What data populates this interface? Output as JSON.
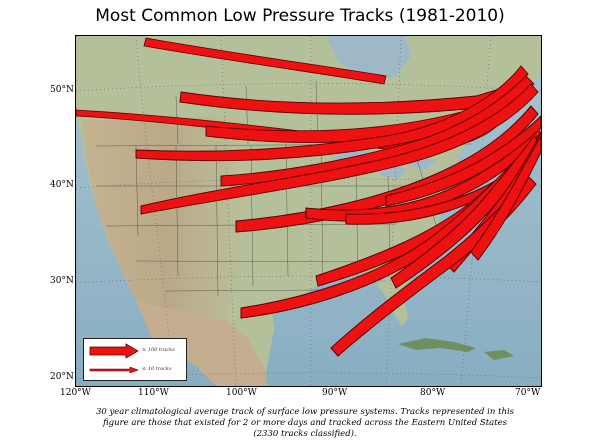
{
  "title": "Most Common Low Pressure Tracks (1981-2010)",
  "latitude_labels": [
    "50°N",
    "40°N",
    "30°N",
    "20°N"
  ],
  "longitude_labels": [
    "120°W",
    "110°W",
    "100°W",
    "90°W",
    "80°W",
    "70°W"
  ],
  "legend": {
    "items": [
      {
        "label": "≥ 100 tracks",
        "style": "thick"
      },
      {
        "label": "≤ 10 tracks",
        "style": "thin"
      }
    ]
  },
  "caption": "30 year climatological average track of surface low pressure systems. Tracks represented in this figure are those that existed for 2 or more days and tracked across the Eastern United States (2330 tracks classified).",
  "colors": {
    "track_fill": "#ee1111",
    "track_stroke": "#5a0000",
    "land": "#b7c29a",
    "mountains": "#c6a98a",
    "water": "#9fb8c6",
    "ocean_deep": "#7ea7bd"
  }
}
